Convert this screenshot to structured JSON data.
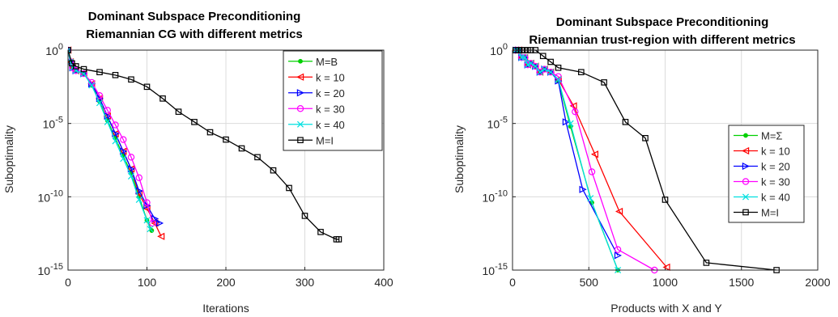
{
  "chart_data": [
    {
      "type": "line",
      "title": [
        "Dominant Subspace Preconditioning",
        "Riemannian CG with different metrics"
      ],
      "xlabel": "Iterations",
      "ylabel": "Suboptimality",
      "xlim": [
        0,
        400
      ],
      "ylim": [
        1e-15,
        1
      ],
      "yscale": "log",
      "xticks": [
        "0",
        "100",
        "200",
        "300",
        "400"
      ],
      "yticks": [
        {
          "base": "10",
          "exp": "0",
          "value": 0
        },
        {
          "base": "10",
          "exp": "-5",
          "value": -5
        },
        {
          "base": "10",
          "exp": "-10",
          "value": -10
        },
        {
          "base": "10",
          "exp": "-15",
          "value": -15
        }
      ],
      "grid": true,
      "legend_position": "top-right",
      "series": [
        {
          "name": "M=B",
          "color": "#00d000",
          "marker": "dot",
          "x": [
            0,
            3,
            6,
            10,
            20,
            30,
            40,
            50,
            60,
            70,
            80,
            90,
            100,
            106
          ],
          "y": [
            0,
            -0.8,
            -1.2,
            -1.4,
            -1.6,
            -2.4,
            -3.5,
            -4.8,
            -6.0,
            -7.2,
            -8.4,
            -10.0,
            -11.6,
            -12.3
          ]
        },
        {
          "name": "k = 10",
          "color": "#ff0000",
          "marker": "tri-left",
          "x": [
            0,
            3,
            6,
            10,
            20,
            30,
            40,
            50,
            60,
            70,
            80,
            90,
            100,
            110,
            118
          ],
          "y": [
            0,
            -0.8,
            -1.2,
            -1.4,
            -1.6,
            -2.3,
            -3.3,
            -4.5,
            -5.7,
            -6.9,
            -8.1,
            -9.8,
            -10.8,
            -11.8,
            -12.7
          ]
        },
        {
          "name": "k = 20",
          "color": "#0000ff",
          "marker": "tri-right",
          "x": [
            0,
            3,
            6,
            10,
            20,
            30,
            40,
            50,
            60,
            70,
            80,
            90,
            100,
            110,
            116
          ],
          "y": [
            0,
            -0.8,
            -1.2,
            -1.4,
            -1.6,
            -2.3,
            -3.3,
            -4.5,
            -5.7,
            -6.9,
            -8.1,
            -9.6,
            -10.6,
            -11.5,
            -11.8
          ]
        },
        {
          "name": "k = 30",
          "color": "#ff00ff",
          "marker": "circle",
          "x": [
            0,
            3,
            6,
            10,
            20,
            30,
            40,
            50,
            60,
            70,
            80,
            90,
            100,
            107
          ],
          "y": [
            0,
            -0.8,
            -1.2,
            -1.4,
            -1.6,
            -2.2,
            -3.1,
            -4.1,
            -5.1,
            -6.1,
            -7.3,
            -8.7,
            -10.4,
            -11.8
          ]
        },
        {
          "name": "k = 40",
          "color": "#00e0e0",
          "marker": "x",
          "x": [
            0,
            3,
            6,
            10,
            20,
            30,
            40,
            50,
            60,
            70,
            80,
            90,
            100,
            104
          ],
          "y": [
            0,
            -0.8,
            -1.2,
            -1.4,
            -1.6,
            -2.4,
            -3.6,
            -4.9,
            -6.2,
            -7.4,
            -8.6,
            -10.2,
            -11.6,
            -12.2
          ]
        },
        {
          "name": "M=I",
          "color": "#000000",
          "marker": "square",
          "x": [
            0,
            5,
            10,
            20,
            40,
            60,
            80,
            100,
            120,
            140,
            160,
            180,
            200,
            220,
            240,
            260,
            280,
            300,
            320,
            340,
            343
          ],
          "y": [
            0,
            -0.9,
            -1.1,
            -1.3,
            -1.5,
            -1.7,
            -2.0,
            -2.5,
            -3.3,
            -4.2,
            -4.9,
            -5.6,
            -6.1,
            -6.7,
            -7.3,
            -8.2,
            -9.4,
            -11.3,
            -12.4,
            -12.9,
            -12.9
          ]
        }
      ]
    },
    {
      "type": "line",
      "title": [
        "Dominant Subspace Preconditioning",
        "Riemannian trust-region with different metrics"
      ],
      "xlabel": "Products with X and Y",
      "ylabel": "Suboptimality",
      "xlim": [
        0,
        2000
      ],
      "ylim": [
        1e-15,
        1
      ],
      "yscale": "log",
      "xticks": [
        "0",
        "500",
        "1000",
        "1500",
        "2000"
      ],
      "yticks": [
        {
          "base": "10",
          "exp": "0",
          "value": 0
        },
        {
          "base": "10",
          "exp": "-5",
          "value": -5
        },
        {
          "base": "10",
          "exp": "-10",
          "value": -10
        },
        {
          "base": "10",
          "exp": "-15",
          "value": -15
        }
      ],
      "grid": true,
      "legend_position": "right",
      "series": [
        {
          "name": "M=Σ",
          "color": "#00d000",
          "marker": "dot",
          "x": [
            20,
            40,
            60,
            80,
            100,
            120,
            150,
            180,
            210,
            250,
            300,
            380,
            520,
            690
          ],
          "y": [
            0,
            0,
            -0.5,
            -0.5,
            -1.0,
            -0.9,
            -1.1,
            -1.5,
            -1.3,
            -1.5,
            -2.1,
            -5.2,
            -10.4,
            -15.0
          ]
        },
        {
          "name": "k = 10",
          "color": "#ff0000",
          "marker": "tri-left",
          "x": [
            20,
            40,
            60,
            80,
            100,
            120,
            150,
            180,
            210,
            250,
            300,
            400,
            540,
            700,
            1010
          ],
          "y": [
            0,
            0,
            -0.5,
            -0.5,
            -1.0,
            -0.9,
            -1.1,
            -1.5,
            -1.3,
            -1.5,
            -2.0,
            -3.8,
            -7.1,
            -11.0,
            -14.8
          ]
        },
        {
          "name": "k = 20",
          "color": "#0000ff",
          "marker": "tri-right",
          "x": [
            20,
            40,
            60,
            80,
            100,
            120,
            150,
            180,
            210,
            250,
            300,
            350,
            460,
            690
          ],
          "y": [
            0,
            0,
            -0.5,
            -0.5,
            -1.0,
            -0.9,
            -1.1,
            -1.5,
            -1.3,
            -1.5,
            -2.1,
            -4.9,
            -9.5,
            -14.0
          ]
        },
        {
          "name": "k = 30",
          "color": "#ff00ff",
          "marker": "circle",
          "x": [
            20,
            40,
            60,
            80,
            100,
            120,
            150,
            180,
            210,
            250,
            300,
            410,
            520,
            690,
            930
          ],
          "y": [
            0,
            0,
            -0.5,
            -0.5,
            -1.0,
            -0.9,
            -1.1,
            -1.5,
            -1.3,
            -1.5,
            -1.8,
            -4.2,
            -8.3,
            -13.6,
            -15.0
          ]
        },
        {
          "name": "k = 40",
          "color": "#00e0e0",
          "marker": "x",
          "x": [
            20,
            40,
            60,
            80,
            100,
            120,
            150,
            180,
            210,
            250,
            300,
            380,
            510,
            690
          ],
          "y": [
            0,
            0,
            -0.5,
            -0.5,
            -1.0,
            -0.9,
            -1.1,
            -1.5,
            -1.3,
            -1.5,
            -2.0,
            -5.0,
            -10.1,
            -15.0
          ]
        },
        {
          "name": "M=I",
          "color": "#000000",
          "marker": "square",
          "x": [
            20,
            40,
            60,
            80,
            100,
            120,
            150,
            200,
            250,
            300,
            450,
            600,
            740,
            870,
            1000,
            1270,
            1730
          ],
          "y": [
            0,
            0,
            0,
            0,
            0,
            0,
            0,
            -0.4,
            -0.8,
            -1.2,
            -1.5,
            -2.2,
            -4.9,
            -6.0,
            -10.2,
            -14.5,
            -15.0
          ]
        }
      ]
    }
  ]
}
